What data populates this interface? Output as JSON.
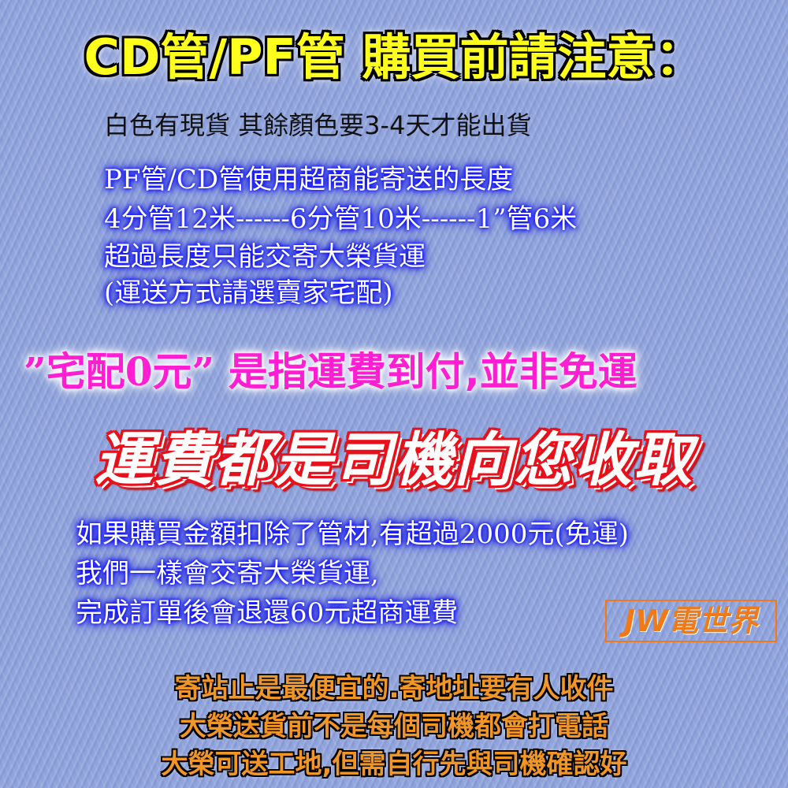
{
  "title": "CD管/PF管  購買前請注意：",
  "stock_note": "白色有現貨 其餘顏色要3-4天才能出貨",
  "shipping_lengths": [
    "PF管/CD管使用超商能寄送的長度",
    "4分管12米------6分管10米------1”管6米",
    "超過長度只能交寄大榮貨運",
    "(運送方式請選賣家宅配)"
  ],
  "zero_fee": {
    "quoted": "”宅配0元”",
    "rest": "是指運費到付,並非免運"
  },
  "driver_collect": "運費都是司機向您收取",
  "refund_notes": [
    "如果購買金額扣除了管材,有超過2000元(免運)",
    "我們一樣會交寄大榮貨運,",
    "完成訂單後會退還60元超商運費"
  ],
  "logo": "JW電世界",
  "delivery_notes": [
    "寄站止是最便宜的.寄地址要有人收件",
    "大榮送貨前不是每個司機都會打電話",
    "大榮可送工地,但需自行先與司機確認好"
  ],
  "colors": {
    "background": "#8fa3dc",
    "title": "#ffff1e",
    "glow_blue": "#1010ff",
    "magenta": "#ff1ed2",
    "banner_red": "#e8101a",
    "orange": "#f09628"
  }
}
